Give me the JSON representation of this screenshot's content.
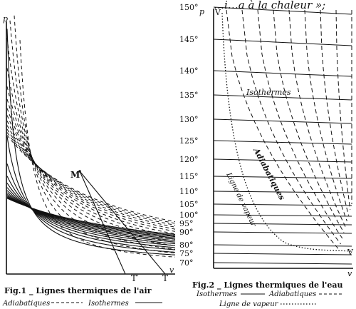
{
  "header_fragment": "…i…a à la chaleur »;",
  "fig1": {
    "axis_y": "p",
    "axis_x": "v",
    "point_M": "M",
    "label_T_prime": "T′",
    "label_T": "T",
    "caption": "Fig.1 _ Lignes thermiques de l'air",
    "legend_adiabatiques": "Adiabatiques",
    "legend_isothermes": "Isothermes"
  },
  "fig2": {
    "axis_y": "p",
    "axis_x": "v",
    "label_V_top": "V",
    "label_V_right": "V",
    "temperatures": [
      "150°",
      "145°",
      "140°",
      "135°",
      "130°",
      "125°",
      "120°",
      "115°",
      "110°",
      "105°",
      "100°",
      "95°",
      "90°",
      "80°",
      "75°",
      "70°"
    ],
    "label_isothermes": "Isothermes",
    "label_adiabatiques": "Adiabatiques",
    "label_ligne_vapeur": "Ligne de vapeur",
    "caption": "Fig.2 _ Lignes thermiques de l'eau",
    "legend_isothermes": "Isothermes",
    "legend_adiabatiques": "Adiabatiques",
    "legend_ligne_vapeur": "Ligne de vapeur"
  },
  "colors": {
    "ink": "#111111",
    "paper": "#ffffff"
  }
}
